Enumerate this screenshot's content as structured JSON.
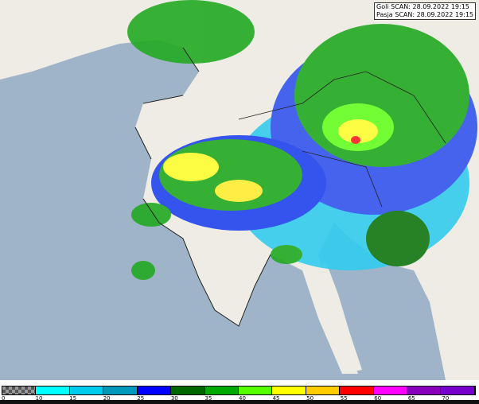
{
  "scan_info": [
    "Goli SCAN: 28.09.2022 19:15",
    "Pasja SCAN: 28.09.2022 19:15"
  ],
  "colors": {
    "sea": "#9fb4c9",
    "land": "#eeece4"
  },
  "legend": {
    "unit_labels": [
      "0",
      "10",
      "15",
      "20",
      "25",
      "30",
      "35",
      "40",
      "45",
      "50",
      "55",
      "60",
      "65",
      "70"
    ],
    "colors": [
      "checker",
      "#00ffff",
      "#00ccee",
      "#0099bb",
      "#0000ff",
      "#006600",
      "#00aa00",
      "#55ff00",
      "#ffff00",
      "#ffcc00",
      "#ff0000",
      "#ff00ff",
      "#8800bb",
      "#7700cc"
    ]
  }
}
